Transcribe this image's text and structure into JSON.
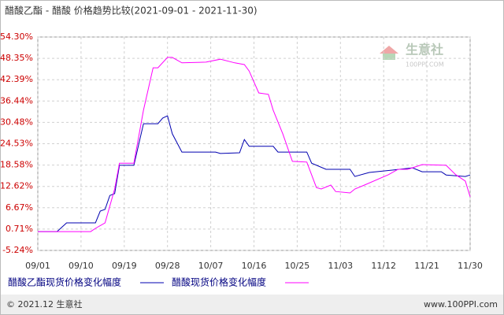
{
  "chart_data": {
    "type": "line",
    "title": "醋酸乙酯 - 醋酸 价格趋势比较(2021-09-01 - 2021-11-30)",
    "watermark": "生意社",
    "watermark_url": "100PPI.COM",
    "footer_left": "© 2021.12 生意社",
    "footer_right": "www.100PPI.com",
    "xlim": [
      "09/01",
      "11/30"
    ],
    "xticks": [
      "09/01",
      "09/10",
      "09/19",
      "09/28",
      "10/07",
      "10/16",
      "10/25",
      "11/03",
      "11/12",
      "11/21",
      "11/30"
    ],
    "ylim": [
      -5.24,
      54.3
    ],
    "yticks": [
      {
        "value": -5.24,
        "label": "-5.24%"
      },
      {
        "value": 0.71,
        "label": "0.71%"
      },
      {
        "value": 6.67,
        "label": "6.67%"
      },
      {
        "value": 12.62,
        "label": "12.62%"
      },
      {
        "value": 18.58,
        "label": "18.58%"
      },
      {
        "value": 24.53,
        "label": "24.53%"
      },
      {
        "value": 30.48,
        "label": "30.48%"
      },
      {
        "value": 36.44,
        "label": "36.44%"
      },
      {
        "value": 42.39,
        "label": "42.39%"
      },
      {
        "value": 48.35,
        "label": "48.35%"
      },
      {
        "value": 54.3,
        "label": "54.30%"
      }
    ],
    "grid": true,
    "series": [
      {
        "name": "醋酸乙酯现货价格变化幅度",
        "color": "#0000b0",
        "x": [
          "09/01",
          "09/05",
          "09/07",
          "09/13",
          "09/14",
          "09/15",
          "09/16",
          "09/17",
          "09/18",
          "09/21",
          "09/23",
          "09/26",
          "09/27",
          "09/28",
          "09/29",
          "10/01",
          "10/08",
          "10/09",
          "10/13",
          "10/14",
          "10/15",
          "10/20",
          "10/21",
          "10/27",
          "10/28",
          "10/31",
          "11/05",
          "11/06",
          "11/09",
          "11/14",
          "11/18",
          "11/20",
          "11/24",
          "11/25",
          "11/29",
          "11/30"
        ],
        "values": [
          0,
          0,
          2.45,
          2.45,
          5.74,
          6.2,
          10.1,
          10.6,
          18.5,
          18.5,
          30.1,
          30.1,
          31.7,
          32.3,
          27.3,
          22.2,
          22.2,
          21.8,
          22.0,
          25.7,
          23.8,
          23.8,
          22.2,
          22.2,
          19.1,
          17.4,
          17.4,
          15.4,
          16.5,
          17.2,
          17.8,
          16.7,
          16.7,
          15.8,
          15.4,
          15.8
        ]
      },
      {
        "name": "醋酸现货价格变化幅度",
        "color": "#ff00ff",
        "x": [
          "09/01",
          "09/12",
          "09/13",
          "09/15",
          "09/17",
          "09/18",
          "09/21",
          "09/23",
          "09/25",
          "09/26",
          "09/28",
          "09/29",
          "10/01",
          "10/06",
          "10/09",
          "10/12",
          "10/14",
          "10/15",
          "10/17",
          "10/19",
          "10/20",
          "10/22",
          "10/24",
          "10/27",
          "10/29",
          "10/30",
          "11/01",
          "11/02",
          "11/05",
          "11/06",
          "11/08",
          "11/13",
          "11/15",
          "11/17",
          "11/18",
          "11/20",
          "11/25",
          "11/27",
          "11/29",
          "11/30"
        ],
        "values": [
          0,
          0,
          0.91,
          2.45,
          11.9,
          19.1,
          19.1,
          33.9,
          45.7,
          45.7,
          48.6,
          48.6,
          47.1,
          47.3,
          48.1,
          47.1,
          46.6,
          44.8,
          38.7,
          38.3,
          33.9,
          27.3,
          19.6,
          19.4,
          12.3,
          11.9,
          13.0,
          11.2,
          10.8,
          11.9,
          13.0,
          15.9,
          17.4,
          17.4,
          17.8,
          18.7,
          18.5,
          15.9,
          14.1,
          9.7
        ]
      }
    ]
  }
}
